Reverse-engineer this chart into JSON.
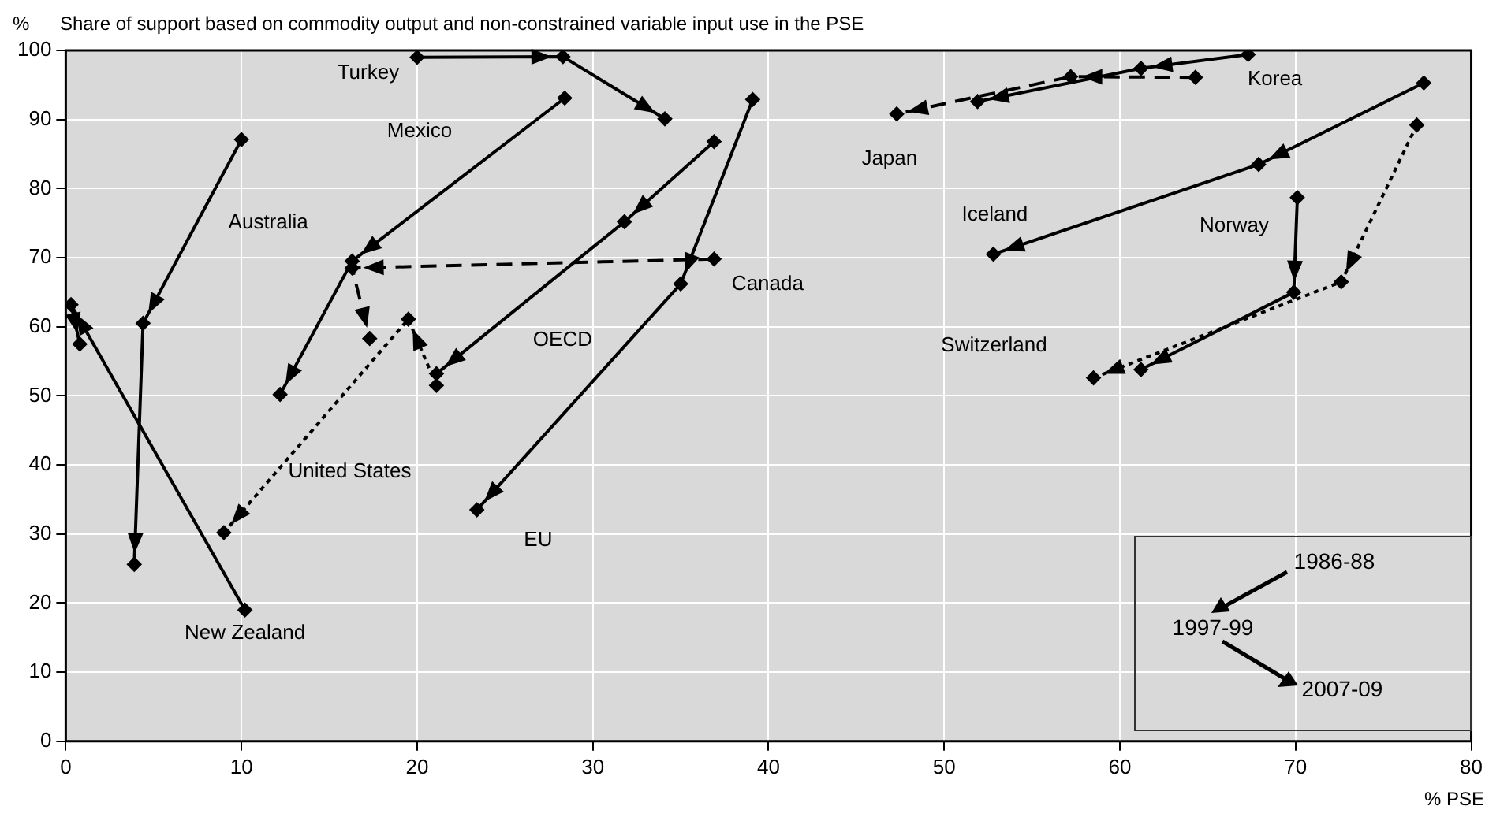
{
  "chart_data": {
    "type": "line",
    "title": "Share of support based on commodity output and non-constrained variable input use in the PSE",
    "ylabel": "%",
    "xlabel": "% PSE",
    "xlim": [
      0,
      80
    ],
    "xticks": [
      0,
      10,
      20,
      30,
      40,
      50,
      60,
      70,
      80
    ],
    "ylim": [
      0,
      100
    ],
    "yticks": [
      0,
      10,
      20,
      30,
      40,
      50,
      60,
      70,
      80,
      90,
      100
    ],
    "grid": true,
    "legend": false,
    "marker": "diamond",
    "annotations": [
      "1986-88",
      "1997-99",
      "2007-09"
    ],
    "series": [
      {
        "name": "Turkey",
        "color": "#000000",
        "line_style": "solid",
        "x": [
          20.0,
          28.3,
          34.1
        ],
        "values": [
          99.0,
          99.1,
          90.1
        ]
      },
      {
        "name": "Mexico",
        "color": "#000000",
        "line_style": "solid",
        "x": [
          28.4,
          16.3,
          12.2
        ],
        "values": [
          93.1,
          69.5,
          50.2
        ]
      },
      {
        "name": "Australia",
        "color": "#000000",
        "line_style": "solid",
        "x": [
          10.0,
          4.4,
          3.9
        ],
        "values": [
          87.1,
          60.5,
          25.6
        ]
      },
      {
        "name": "New Zealand",
        "color": "#000000",
        "line_style": "solid",
        "x": [
          10.2,
          0.3,
          0.8
        ],
        "values": [
          19.0,
          63.2,
          57.5
        ]
      },
      {
        "name": "Canada",
        "color": "#000000",
        "line_style": "dashed",
        "x": [
          36.9,
          16.3,
          17.3
        ],
        "values": [
          69.8,
          68.5,
          58.3
        ]
      },
      {
        "name": "United States",
        "color": "#000000",
        "line_style": "dotted",
        "x": [
          21.1,
          19.5,
          9.0
        ],
        "values": [
          51.5,
          61.1,
          30.2
        ]
      },
      {
        "name": "OECD",
        "color": "#000000",
        "line_style": "solid",
        "x": [
          36.9,
          31.8,
          21.1
        ],
        "values": [
          86.8,
          75.2,
          53.2
        ]
      },
      {
        "name": "EU",
        "color": "#000000",
        "line_style": "solid",
        "x": [
          39.1,
          35.0,
          23.4
        ],
        "values": [
          92.9,
          66.2,
          33.5
        ]
      },
      {
        "name": "Japan",
        "color": "#000000",
        "line_style": "dashed",
        "x": [
          64.3,
          57.2,
          47.3
        ],
        "values": [
          96.1,
          96.2,
          90.8
        ]
      },
      {
        "name": "Korea",
        "color": "#000000",
        "line_style": "solid",
        "x": [
          67.3,
          61.2,
          51.9
        ],
        "values": [
          99.4,
          97.4,
          92.6
        ]
      },
      {
        "name": "Iceland",
        "color": "#000000",
        "line_style": "solid",
        "x": [
          77.3,
          67.9,
          52.8
        ],
        "values": [
          95.3,
          83.5,
          70.5
        ]
      },
      {
        "name": "Norway",
        "color": "#000000",
        "line_style": "solid",
        "x": [
          70.1,
          69.9,
          61.2
        ],
        "values": [
          78.7,
          65.0,
          53.8
        ]
      },
      {
        "name": "Switzerland",
        "color": "#000000",
        "line_style": "dotted",
        "x": [
          76.9,
          72.6,
          58.5
        ],
        "values": [
          89.2,
          66.5,
          52.6
        ]
      }
    ]
  }
}
